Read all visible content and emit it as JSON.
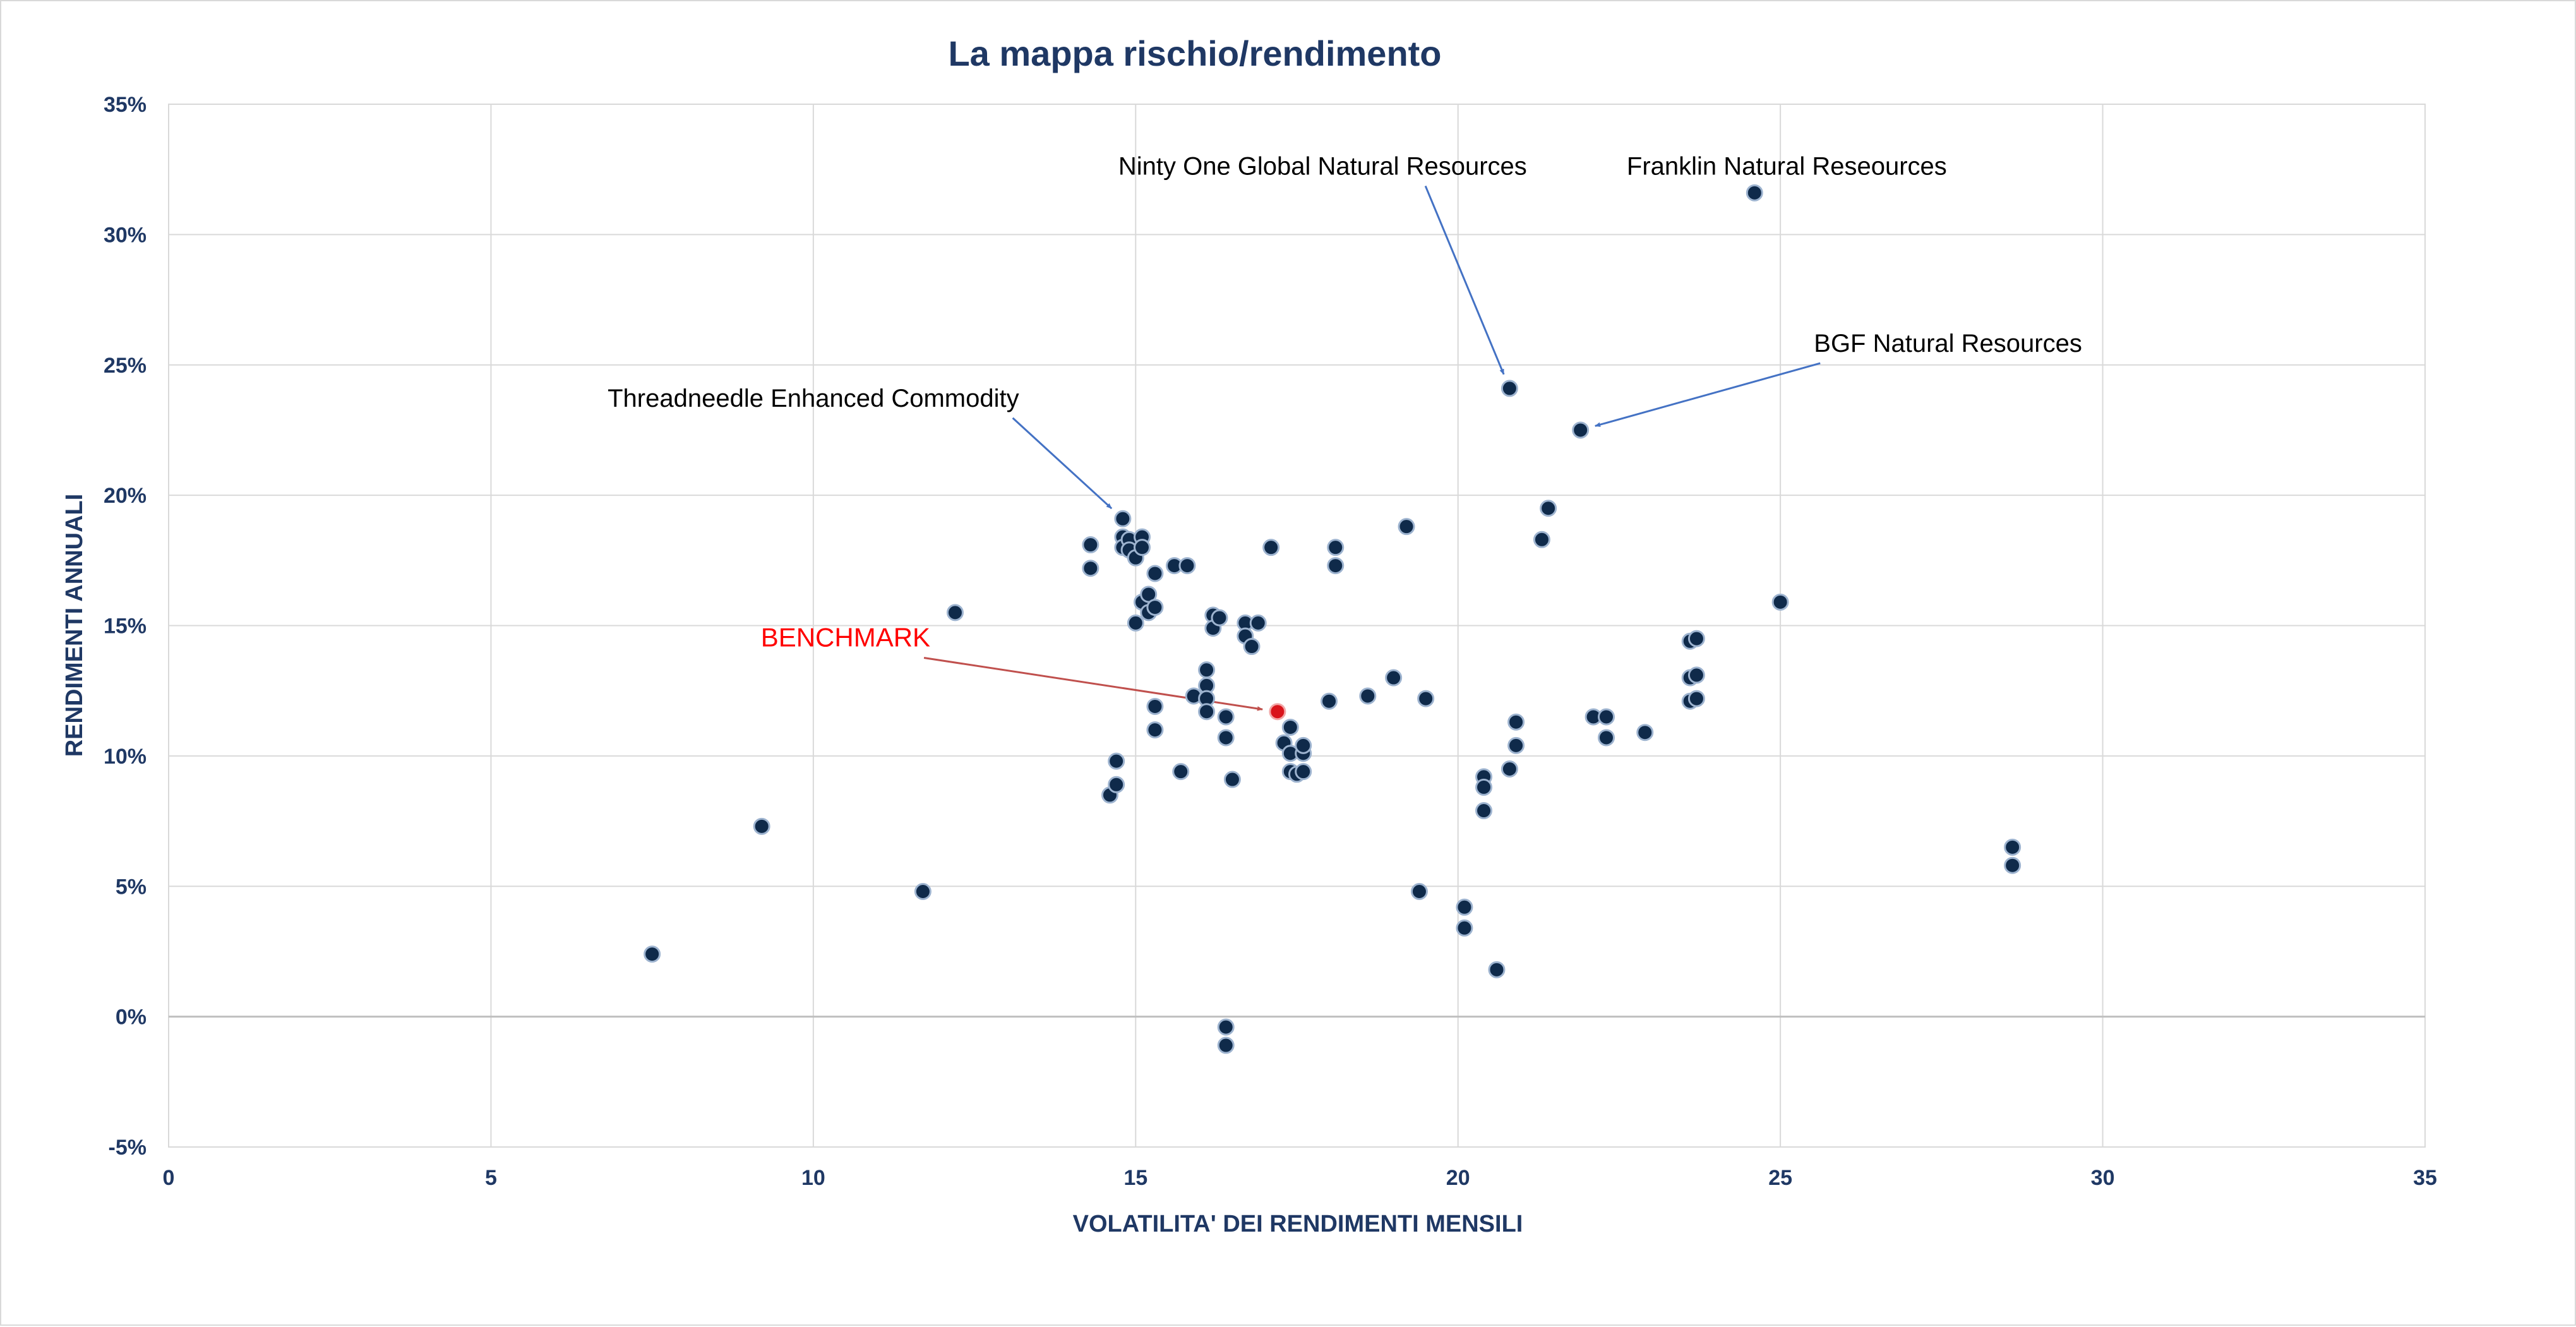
{
  "chart_data": {
    "type": "scatter",
    "title": "La mappa rischio/rendimento",
    "xlabel": "VOLATILITA' DEI RENDIMENTI MENSILI",
    "ylabel": "RENDIMENTI ANNUALI",
    "xlim": [
      0,
      35
    ],
    "ylim": [
      -5,
      35
    ],
    "x_ticks": [
      "0",
      "5",
      "10",
      "15",
      "20",
      "25",
      "30",
      "35"
    ],
    "y_ticks": [
      "35%",
      "30%",
      "25%",
      "20%",
      "15%",
      "10%",
      "5%",
      "0%",
      "-5%"
    ],
    "grid": true,
    "colors": {
      "points": "#0f2a4a",
      "benchmark": "#d9141b",
      "arrow_blue": "#4472c4",
      "arrow_red": "#c0504d",
      "title": "#1f3864"
    },
    "series": [
      {
        "points": [
          [
            7.5,
            2.4
          ],
          [
            9.2,
            7.3
          ],
          [
            11.7,
            4.8
          ],
          [
            12.2,
            15.5
          ],
          [
            14.3,
            18.1
          ],
          [
            14.3,
            17.2
          ],
          [
            14.6,
            8.5
          ],
          [
            14.7,
            8.9
          ],
          [
            14.7,
            9.8
          ],
          [
            14.8,
            19.1
          ],
          [
            14.8,
            18.4
          ],
          [
            14.8,
            18.0
          ],
          [
            14.9,
            18.3
          ],
          [
            14.9,
            17.9
          ],
          [
            15.0,
            17.6
          ],
          [
            15.0,
            15.1
          ],
          [
            15.1,
            18.4
          ],
          [
            15.1,
            18.0
          ],
          [
            15.1,
            15.9
          ],
          [
            15.2,
            16.2
          ],
          [
            15.2,
            15.5
          ],
          [
            15.3,
            15.7
          ],
          [
            15.3,
            17.0
          ],
          [
            15.3,
            11.9
          ],
          [
            15.3,
            11.0
          ],
          [
            15.6,
            17.3
          ],
          [
            15.7,
            9.4
          ],
          [
            15.8,
            17.3
          ],
          [
            15.9,
            12.3
          ],
          [
            16.1,
            13.3
          ],
          [
            16.1,
            12.7
          ],
          [
            16.1,
            12.2
          ],
          [
            16.1,
            11.7
          ],
          [
            16.2,
            15.4
          ],
          [
            16.2,
            14.9
          ],
          [
            16.3,
            15.3
          ],
          [
            16.4,
            11.5
          ],
          [
            16.4,
            10.7
          ],
          [
            16.4,
            -0.4
          ],
          [
            16.4,
            -1.1
          ],
          [
            16.5,
            9.1
          ],
          [
            16.7,
            15.1
          ],
          [
            16.7,
            14.6
          ],
          [
            16.8,
            14.2
          ],
          [
            16.9,
            15.1
          ],
          [
            17.1,
            18.0
          ],
          [
            17.3,
            10.5
          ],
          [
            17.4,
            11.1
          ],
          [
            17.4,
            10.1
          ],
          [
            17.4,
            9.4
          ],
          [
            17.5,
            9.3
          ],
          [
            17.6,
            10.1
          ],
          [
            17.6,
            10.4
          ],
          [
            17.6,
            9.4
          ],
          [
            18.0,
            12.1
          ],
          [
            18.1,
            18.0
          ],
          [
            18.1,
            17.3
          ],
          [
            18.6,
            12.3
          ],
          [
            19.0,
            13.0
          ],
          [
            19.2,
            18.8
          ],
          [
            19.4,
            4.8
          ],
          [
            19.5,
            12.2
          ],
          [
            20.1,
            4.2
          ],
          [
            20.1,
            3.4
          ],
          [
            20.4,
            9.2
          ],
          [
            20.4,
            8.8
          ],
          [
            20.4,
            7.9
          ],
          [
            20.6,
            1.8
          ],
          [
            20.8,
            24.1
          ],
          [
            20.8,
            9.5
          ],
          [
            20.9,
            11.3
          ],
          [
            20.9,
            10.4
          ],
          [
            21.3,
            18.3
          ],
          [
            21.4,
            19.5
          ],
          [
            21.9,
            22.5
          ],
          [
            22.1,
            11.5
          ],
          [
            22.3,
            11.5
          ],
          [
            22.3,
            10.7
          ],
          [
            22.9,
            10.9
          ],
          [
            23.6,
            14.4
          ],
          [
            23.6,
            13.0
          ],
          [
            23.6,
            12.1
          ],
          [
            23.7,
            14.5
          ],
          [
            23.7,
            13.1
          ],
          [
            23.7,
            12.2
          ],
          [
            24.6,
            31.6
          ],
          [
            25.0,
            15.9
          ],
          [
            28.6,
            6.5
          ],
          [
            28.6,
            5.8
          ]
        ]
      },
      {
        "points": [
          [
            17.2,
            11.7
          ]
        ]
      }
    ],
    "annotations": [
      {
        "text": "Ninty One Global Natural Resources",
        "style": "blue",
        "target": [
          20.8,
          24.1
        ],
        "text_anchor": [
          17.9,
          32.3
        ]
      },
      {
        "text": "Franklin Natural Reseources",
        "style": "plain",
        "target": null,
        "text_anchor": [
          25.1,
          32.3
        ]
      },
      {
        "text": "BGF Natural Resources",
        "style": "blue",
        "target": [
          21.9,
          22.5
        ],
        "text_anchor": [
          27.6,
          25.5
        ]
      },
      {
        "text": "Threadneedle Enhanced Commodity",
        "style": "blue",
        "target": [
          14.8,
          19.1
        ],
        "text_anchor": [
          10.0,
          23.4
        ]
      },
      {
        "text": "BENCHMARK",
        "style": "red",
        "target": [
          17.2,
          11.7
        ],
        "text_anchor": [
          10.5,
          14.2
        ]
      }
    ]
  }
}
